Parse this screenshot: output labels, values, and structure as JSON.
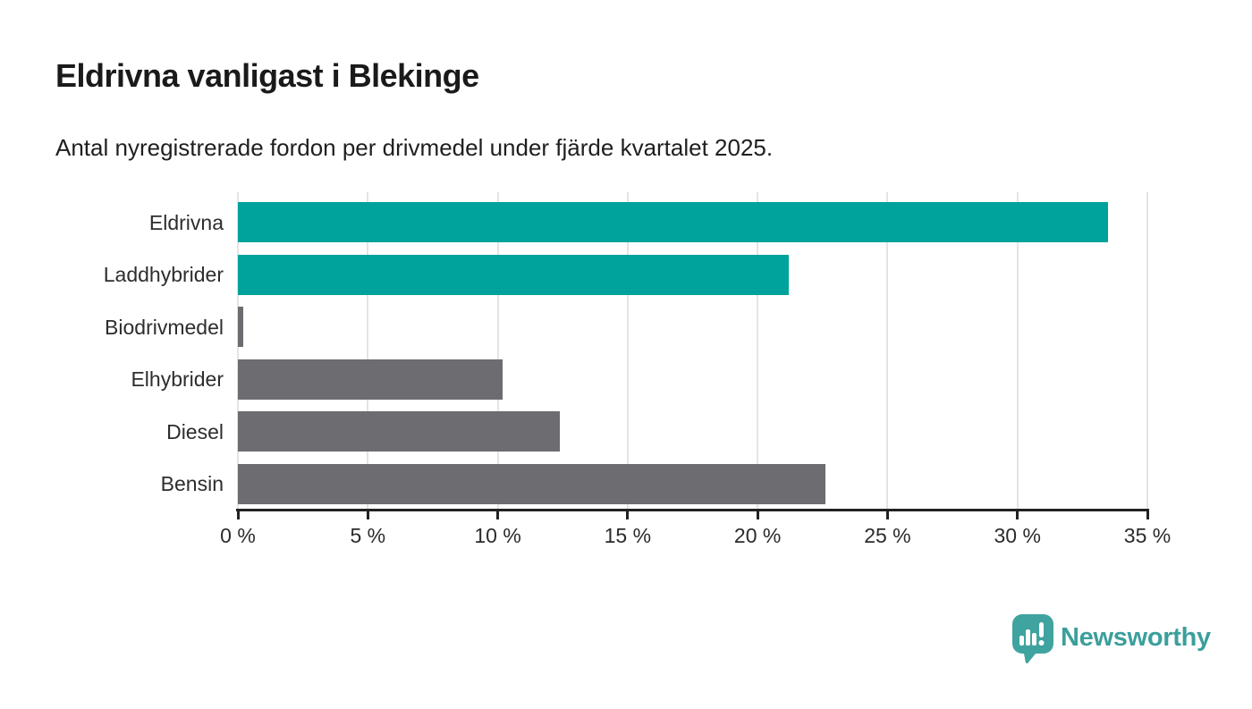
{
  "chart_data": {
    "type": "bar",
    "orientation": "horizontal",
    "title": "Eldrivna vanligast i Blekinge",
    "subtitle": "Antal nyregistrerade fordon per drivmedel under fjärde kvartalet 2025.",
    "categories": [
      "Eldrivna",
      "Laddhybrider",
      "Biodrivmedel",
      "Elhybrider",
      "Diesel",
      "Bensin"
    ],
    "values": [
      33.5,
      21.2,
      0.2,
      10.2,
      12.4,
      22.6
    ],
    "unit": "%",
    "bar_colors": [
      "#00a39b",
      "#00a39b",
      "#6c6c71",
      "#6c6c71",
      "#6c6c71",
      "#6c6c71"
    ],
    "xlim": [
      0,
      35
    ],
    "x_tick_values": [
      0,
      5,
      10,
      15,
      20,
      25,
      30,
      35
    ],
    "x_tick_labels": [
      "0 %",
      "5 %",
      "10 %",
      "15 %",
      "20 %",
      "25 %",
      "30 %",
      "35 %"
    ],
    "xlabel": "",
    "ylabel": "",
    "grid": "vertical gridlines only",
    "legend": "none"
  },
  "footer": {
    "brand": "Newsworthy",
    "logo_icon": "newsworthy-speech-bubble-bar-chart-icon"
  },
  "colors": {
    "background": "#ffffff",
    "accent_teal": "#00a39b",
    "bar_gray": "#6c6c71",
    "gridline": "#e4e4e4",
    "axis": "#222222",
    "title_text": "#1a1a1a",
    "body_text": "#2d2d2d",
    "logo_teal": "#3b9f9c"
  }
}
